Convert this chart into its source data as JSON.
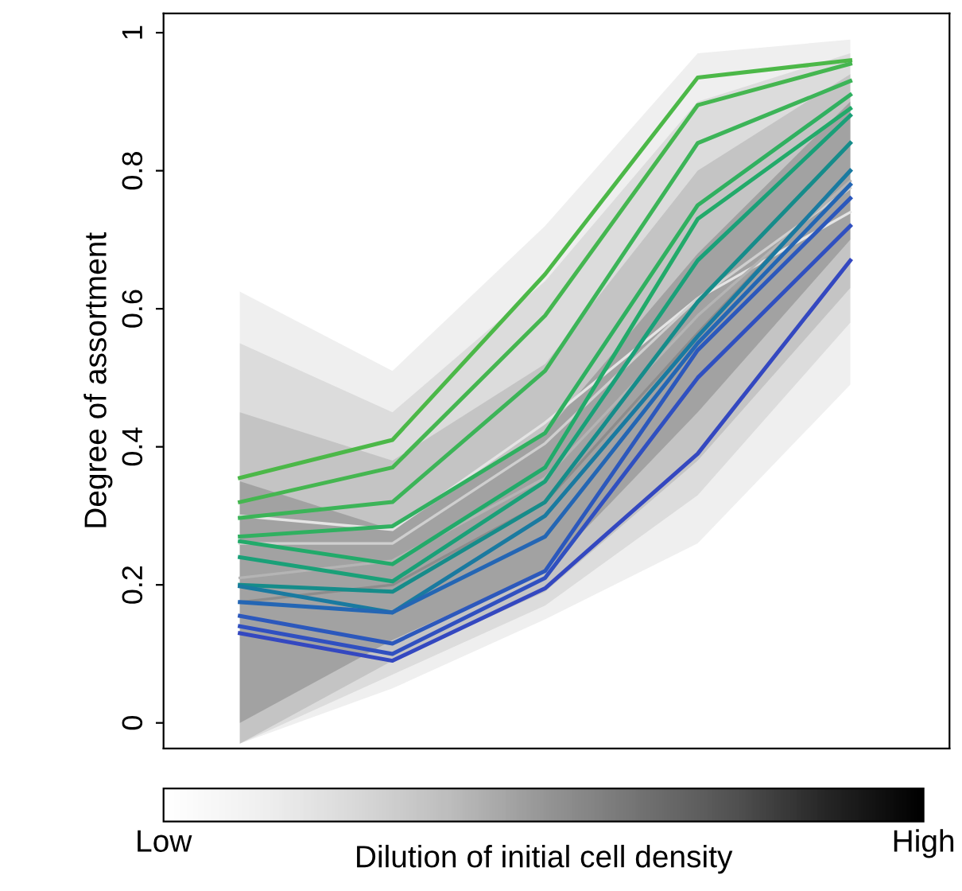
{
  "chart_data": {
    "type": "line",
    "ylabel": "Degree of assortment",
    "clabel": "Dilution of initial cell density",
    "clim": [
      0,
      1
    ],
    "cticks": [
      {
        "value": 0,
        "label": "Low"
      },
      {
        "value": 1,
        "label": "High"
      }
    ],
    "categories": [
      null,
      null,
      null,
      null,
      null
    ],
    "ylim": [
      -0.037,
      1.028
    ],
    "yticks": [
      0,
      0.2,
      0.4,
      0.6,
      0.8,
      1
    ],
    "grid": false,
    "legend": false,
    "marker": "none",
    "line_style": "solid",
    "series": [
      {
        "type": "line",
        "color": "#e4e4e4",
        "values": [
          0.3,
          0.28,
          0.435,
          0.615,
          0.74
        ],
        "lower": [
          -0.03,
          0.05,
          0.15,
          0.26,
          0.49
        ],
        "upper": [
          0.625,
          0.51,
          0.72,
          0.97,
          0.99
        ]
      },
      {
        "type": "line",
        "color": "#cfcfcf",
        "values": [
          0.26,
          0.26,
          0.405,
          0.615,
          0.775
        ],
        "lower": [
          -0.03,
          0.07,
          0.17,
          0.33,
          0.58
        ],
        "upper": [
          0.55,
          0.45,
          0.64,
          0.9,
          0.97
        ]
      },
      {
        "type": "line",
        "color": "#b4b4b4",
        "values": [
          0.21,
          0.235,
          0.355,
          0.59,
          0.785
        ],
        "lower": [
          -0.03,
          0.09,
          0.19,
          0.38,
          0.63
        ],
        "upper": [
          0.45,
          0.38,
          0.52,
          0.8,
          0.94
        ]
      },
      {
        "type": "line",
        "color": "#8c8c8c",
        "values": [
          0.175,
          0.2,
          0.32,
          0.565,
          0.8
        ],
        "lower": [
          0.0,
          0.12,
          0.22,
          0.45,
          0.7
        ],
        "upper": [
          0.35,
          0.28,
          0.42,
          0.68,
          0.9
        ]
      },
      {
        "color": "#4cb848",
        "values": [
          0.355,
          0.41,
          0.65,
          0.935,
          0.96
        ]
      },
      {
        "color": "#45b650",
        "values": [
          0.32,
          0.37,
          0.59,
          0.895,
          0.955
        ]
      },
      {
        "color": "#3cb458",
        "values": [
          0.297,
          0.32,
          0.51,
          0.84,
          0.93
        ]
      },
      {
        "color": "#30b060",
        "values": [
          0.27,
          0.285,
          0.42,
          0.75,
          0.91
        ]
      },
      {
        "color": "#22aa6a",
        "values": [
          0.263,
          0.23,
          0.37,
          0.73,
          0.89
        ]
      },
      {
        "color": "#1aa078",
        "values": [
          0.24,
          0.205,
          0.35,
          0.67,
          0.88
        ]
      },
      {
        "color": "#168c8a",
        "values": [
          0.2,
          0.19,
          0.32,
          0.61,
          0.84
        ]
      },
      {
        "color": "#1a7aa0",
        "values": [
          0.198,
          0.16,
          0.3,
          0.56,
          0.8
        ]
      },
      {
        "color": "#2466b4",
        "values": [
          0.175,
          0.16,
          0.27,
          0.55,
          0.78
        ]
      },
      {
        "color": "#2c58bc",
        "values": [
          0.155,
          0.115,
          0.22,
          0.54,
          0.76
        ]
      },
      {
        "color": "#3050c0",
        "values": [
          0.14,
          0.1,
          0.21,
          0.5,
          0.72
        ]
      },
      {
        "color": "#3448c0",
        "values": [
          0.13,
          0.09,
          0.195,
          0.39,
          0.67
        ]
      }
    ]
  }
}
